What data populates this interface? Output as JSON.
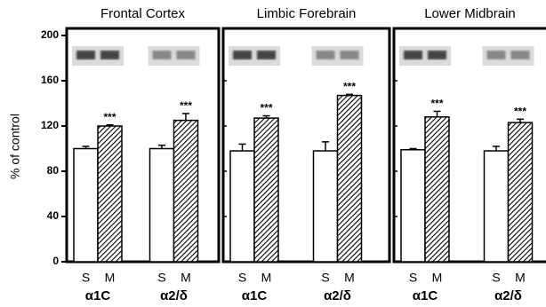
{
  "chart_data": [
    {
      "type": "bar",
      "title": "Frontal Cortex",
      "ylabel": "% of control",
      "categories": [
        "α1C",
        "α2/δ"
      ],
      "series": [
        {
          "name": "S",
          "color": "#ffffff",
          "values": [
            100,
            100
          ],
          "errors": [
            2,
            3
          ]
        },
        {
          "name": "M",
          "color": "hatch",
          "values": [
            120,
            125
          ],
          "errors": [
            1,
            6
          ],
          "annotations": [
            "***",
            "***"
          ]
        }
      ],
      "ylim": [
        0,
        200
      ],
      "yticks": [
        0,
        40,
        80,
        120,
        160,
        200
      ]
    },
    {
      "type": "bar",
      "title": "Limbic Forebrain",
      "categories": [
        "α1C",
        "α2/δ"
      ],
      "series": [
        {
          "name": "S",
          "color": "#ffffff",
          "values": [
            98,
            98
          ],
          "errors": [
            6,
            8
          ]
        },
        {
          "name": "M",
          "color": "hatch",
          "values": [
            127,
            147
          ],
          "errors": [
            2,
            1
          ],
          "annotations": [
            "***",
            "***"
          ]
        }
      ],
      "ylim": [
        0,
        200
      ]
    },
    {
      "type": "bar",
      "title": "Lower Midbrain",
      "categories": [
        "α1C",
        "α2/δ"
      ],
      "series": [
        {
          "name": "S",
          "color": "#ffffff",
          "values": [
            99,
            98
          ],
          "errors": [
            1,
            4
          ]
        },
        {
          "name": "M",
          "color": "hatch",
          "values": [
            128,
            123
          ],
          "errors": [
            5,
            3
          ],
          "annotations": [
            "***",
            "***"
          ]
        }
      ],
      "ylim": [
        0,
        200
      ]
    }
  ]
}
